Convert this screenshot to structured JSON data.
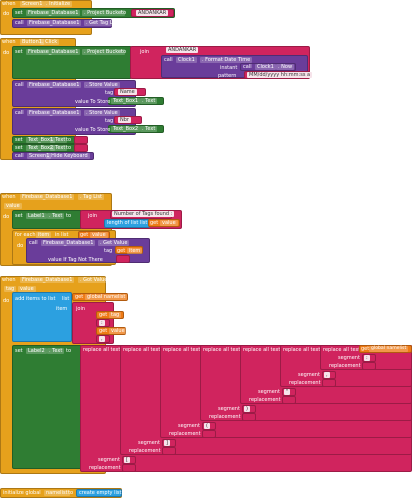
{
  "groups": [
    {
      "items": [
        "when",
        "Screen1",
        ". Initialize",
        "do",
        "set",
        "Firebase_Database1",
        ". Project Bucket",
        "to",
        "ANDANKAR",
        "call",
        "Firebase_Database1",
        ". Get Tag List"
      ]
    },
    {
      "items": [
        "when",
        "Button1",
        ". Click",
        "do",
        "set",
        "Firebase_Database1",
        ". Project Bucket",
        "to",
        "join",
        "ANDANKAR",
        "call",
        "Clock1",
        ". Format Date Time",
        "instant",
        "call",
        "Clock1",
        ". Now",
        "pattern",
        "MM/dd/yyyy hh:mm:ss a",
        "call",
        "Firebase_Database1",
        ". Store Value",
        "tag",
        "Name",
        "value To Store",
        "Text_Box1",
        ". Text",
        "call",
        "Firebase_Database1",
        ". Store Value",
        "tag",
        "Nbr",
        "value To Store",
        "Text_Box2",
        ". Text",
        "set",
        "Text_Box1",
        ". Text",
        "to",
        "set",
        "Text_Box2",
        ". Text",
        "to",
        "call",
        "Screen1",
        ". Hide Keyboard"
      ]
    },
    {
      "items": [
        "when",
        "Firebase_Database1",
        ". Tag List",
        "value",
        "do",
        "set",
        "Label1",
        ". Text",
        "to",
        "join",
        "Number of Tags found :",
        "length of list",
        "list",
        "get",
        "value",
        "for each",
        "item",
        "in list",
        "get",
        "value",
        "do",
        "call",
        "Firebase_Database1",
        ". Get Value",
        "tag",
        "get",
        "item",
        "value If Tag Not There"
      ]
    },
    {
      "items": [
        "when",
        "Firebase_Database1",
        ". Got Value",
        "tag",
        "value",
        "do",
        "add items to list",
        "list",
        "item",
        "get",
        "global namelist",
        "join",
        "get",
        "tag",
        ":",
        "get",
        "value",
        ",",
        "set",
        "Label2",
        ". Text",
        "to",
        "replace all text",
        "replace all text",
        "replace all text",
        "replace all text",
        "replace all text",
        "replace all text",
        "replace all text",
        "segment",
        "segment",
        "segment",
        "segment",
        "segment",
        "segment",
        "segment",
        "replacement",
        "replacement",
        "replacement",
        "replacement",
        "replacement",
        "replacement",
        "replacement",
        "[",
        "]",
        "(",
        ")",
        "\"",
        ",",
        ":",
        "get",
        "global namelist"
      ]
    },
    {
      "items": [
        "initialize global",
        "namelist",
        "to",
        "create empty list"
      ]
    }
  ]
}
